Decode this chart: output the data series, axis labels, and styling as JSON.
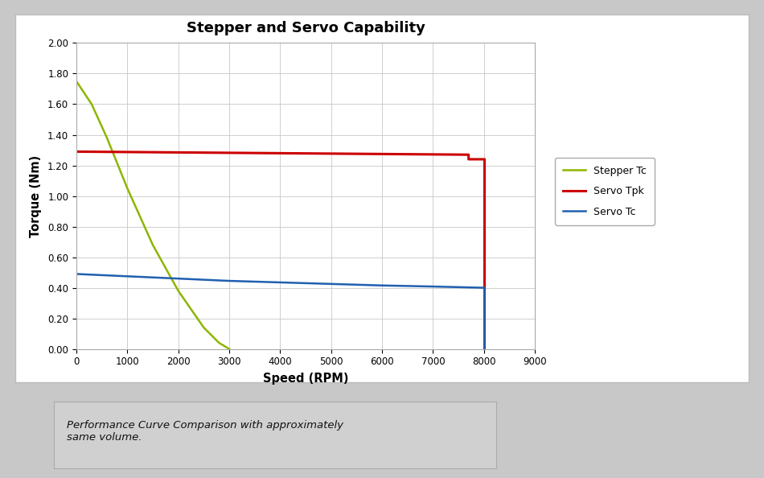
{
  "title": "Stepper and Servo Capability",
  "xlabel": "Speed (RPM)",
  "ylabel": "Torque (Nm)",
  "xlim": [
    0,
    9000
  ],
  "ylim": [
    0.0,
    2.0
  ],
  "xticks": [
    0,
    1000,
    2000,
    3000,
    4000,
    5000,
    6000,
    7000,
    8000,
    9000
  ],
  "yticks": [
    0.0,
    0.2,
    0.4,
    0.6,
    0.8,
    1.0,
    1.2,
    1.4,
    1.6,
    1.8,
    2.0
  ],
  "stepper_tc": {
    "x": [
      0,
      300,
      600,
      1000,
      1500,
      2000,
      2500,
      2800,
      3000
    ],
    "y": [
      1.75,
      1.6,
      1.38,
      1.05,
      0.68,
      0.38,
      0.14,
      0.04,
      0.0
    ],
    "color": "#8db600",
    "label": "Stepper Tc",
    "linewidth": 1.8
  },
  "servo_tpk": {
    "x": [
      0,
      7700,
      7700,
      8000
    ],
    "y": [
      1.29,
      1.27,
      1.24,
      1.24
    ],
    "color": "#cc0000",
    "label": "Servo Tpk",
    "linewidth": 2.2
  },
  "servo_tpk_drop": {
    "x": [
      8000,
      8000
    ],
    "y": [
      1.24,
      0.0
    ],
    "color": "#cc0000",
    "linewidth": 2.2
  },
  "servo_tc": {
    "x": [
      0,
      1000,
      2000,
      3000,
      4000,
      5000,
      6000,
      7000,
      8000
    ],
    "y": [
      0.49,
      0.475,
      0.46,
      0.445,
      0.435,
      0.425,
      0.415,
      0.408,
      0.4
    ],
    "color": "#2060b0",
    "label": "Servo Tc",
    "linewidth": 1.8
  },
  "servo_tc_drop": {
    "x": [
      8000,
      8000
    ],
    "y": [
      0.4,
      0.0
    ],
    "color": "#2060b0",
    "linewidth": 1.8
  },
  "caption": "Performance Curve Comparison with approximately\nsame volume.",
  "outer_bg": "#c8c8c8",
  "chart_panel_bg": "#ffffff",
  "caption_panel_bg": "#d0d0d0"
}
